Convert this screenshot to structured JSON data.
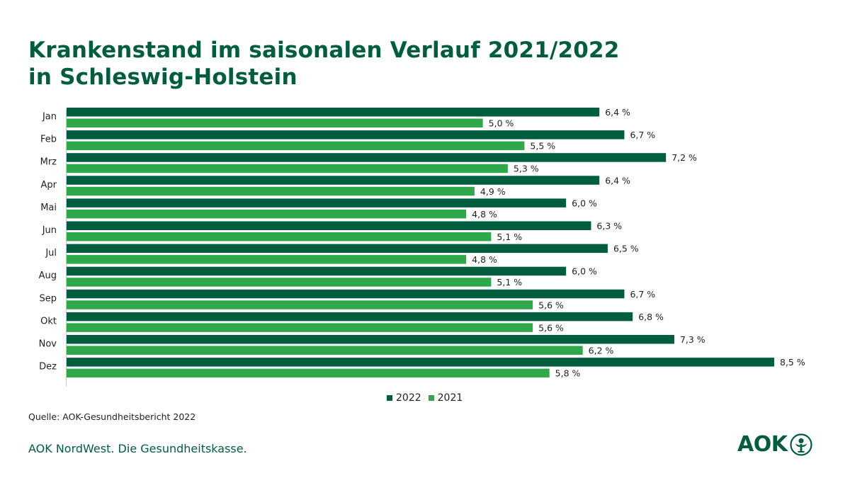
{
  "title_line1": "Krankenstand im saisonalen Verlauf 2021/2022",
  "title_line2": "in Schleswig-Holstein",
  "source": "Quelle: AOK-Gesundheitsbericht  2022",
  "footer": "AOK NordWest. Die Gesundheitskasse.",
  "logo_text": "AOK",
  "colors": {
    "series_2022": "#005e3f",
    "series_2021": "#2ea84a",
    "title": "#005e3f"
  },
  "chart_data": {
    "type": "bar",
    "orientation": "horizontal",
    "categories": [
      "Jan",
      "Feb",
      "Mrz",
      "Apr",
      "Mai",
      "Jun",
      "Jul",
      "Aug",
      "Sep",
      "Okt",
      "Nov",
      "Dez"
    ],
    "series": [
      {
        "name": "2022",
        "values": [
          6.4,
          6.7,
          7.2,
          6.4,
          6.0,
          6.3,
          6.5,
          6.0,
          6.7,
          6.8,
          7.3,
          8.5
        ],
        "labels": [
          "6,4 %",
          "6,7 %",
          "7,2 %",
          "6,4 %",
          "6,0 %",
          "6,3 %",
          "6,5 %",
          "6,0 %",
          "6,7 %",
          "6,8 %",
          "7,3 %",
          "8,5 %"
        ]
      },
      {
        "name": "2021",
        "values": [
          5.0,
          5.5,
          5.3,
          4.9,
          4.8,
          5.1,
          4.8,
          5.1,
          5.6,
          5.6,
          6.2,
          5.8
        ],
        "labels": [
          "5,0 %",
          "5,5 %",
          "5,3 %",
          "4,9 %",
          "4,8 %",
          "5,1 %",
          "4,8 %",
          "5,1 %",
          "5,6 %",
          "5,6 %",
          "6,2 %",
          "5,8 %"
        ]
      }
    ],
    "xlim": [
      0,
      8.5
    ],
    "grid": false,
    "legend_position": "bottom-center"
  }
}
